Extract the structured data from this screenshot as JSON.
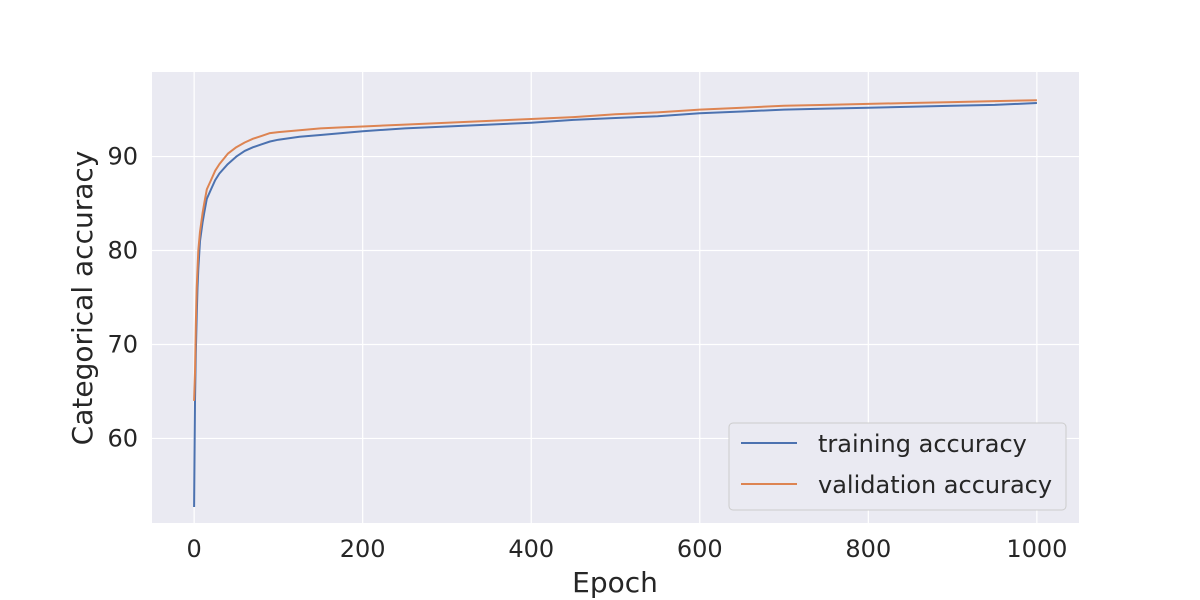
{
  "chart_data": {
    "type": "line",
    "title": "",
    "xlabel": "Epoch",
    "ylabel": "Categorical accuracy",
    "xlim": [
      -50,
      1050
    ],
    "ylim": [
      51,
      99
    ],
    "xticks": [
      0,
      200,
      400,
      600,
      800,
      1000
    ],
    "yticks": [
      60,
      70,
      80,
      90
    ],
    "grid": true,
    "legend_position": "lower-right",
    "series": [
      {
        "name": "training accuracy",
        "color": "#4c72b0",
        "x": [
          0,
          1,
          2,
          3,
          4,
          5,
          7,
          10,
          12,
          15,
          20,
          25,
          30,
          40,
          50,
          60,
          70,
          80,
          90,
          100,
          125,
          150,
          175,
          200,
          250,
          300,
          350,
          400,
          450,
          500,
          550,
          600,
          650,
          700,
          750,
          800,
          850,
          900,
          950,
          1000
        ],
        "y": [
          52.7,
          64,
          69,
          73,
          76,
          78,
          81,
          83,
          84,
          85.5,
          86.5,
          87.5,
          88.2,
          89.2,
          90,
          90.6,
          91,
          91.3,
          91.6,
          91.8,
          92.1,
          92.3,
          92.5,
          92.7,
          93,
          93.2,
          93.4,
          93.6,
          93.9,
          94.1,
          94.3,
          94.6,
          94.8,
          95,
          95.1,
          95.2,
          95.3,
          95.4,
          95.5,
          95.7
        ]
      },
      {
        "name": "validation accuracy",
        "color": "#dd8452",
        "x": [
          0,
          1,
          2,
          3,
          4,
          5,
          7,
          10,
          12,
          15,
          20,
          25,
          30,
          40,
          50,
          60,
          70,
          80,
          90,
          100,
          125,
          150,
          175,
          200,
          250,
          300,
          350,
          400,
          450,
          500,
          550,
          600,
          650,
          700,
          750,
          800,
          850,
          900,
          950,
          1000
        ],
        "y": [
          64,
          67,
          72,
          76,
          78,
          80,
          82,
          84,
          85,
          86.5,
          87.5,
          88.5,
          89.2,
          90.3,
          91,
          91.5,
          91.9,
          92.2,
          92.5,
          92.6,
          92.8,
          93,
          93.1,
          93.2,
          93.4,
          93.6,
          93.8,
          94,
          94.2,
          94.5,
          94.7,
          95,
          95.2,
          95.4,
          95.5,
          95.6,
          95.7,
          95.8,
          95.9,
          96
        ]
      }
    ]
  }
}
